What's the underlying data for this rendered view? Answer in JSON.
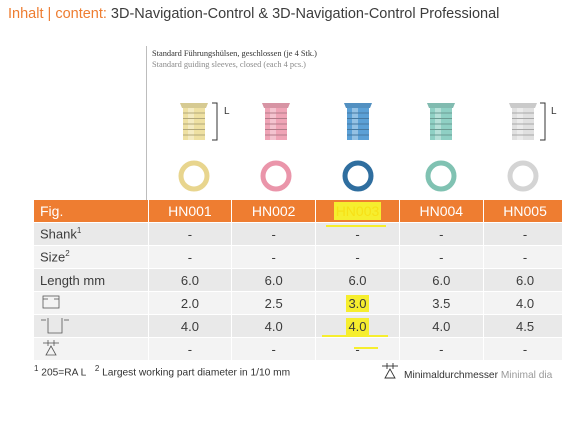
{
  "header": {
    "inhalt": "Inhalt",
    "sep": " | ",
    "content": "content:",
    "title": " 3D-Navigation-Control & 3D-Navigation-Control Professional"
  },
  "subtitle": {
    "de": "Standard Führungshülsen, geschlossen (je 4 Stk.)",
    "en": "Standard guiding sleeves, closed (each 4 pcs.)"
  },
  "dimension_label": "L",
  "sleeve_colors": [
    "#eee0a2",
    "#efa4b6",
    "#5ba0d6",
    "#8fd0c4",
    "#e0e0e0"
  ],
  "ring_colors": [
    "#e8d58e",
    "#ea95aa",
    "#2f6e9f",
    "#80c2b2",
    "#d4d4d4"
  ],
  "table": {
    "columns": [
      "HN001",
      "HN002",
      "HN003",
      "HN004",
      "HN005"
    ],
    "header_label": "Fig.",
    "highlighted_column": "HN003",
    "rows": [
      {
        "label": "Shank",
        "sup": "1",
        "values": [
          "-",
          "-",
          "-",
          "-",
          "-"
        ]
      },
      {
        "label": "Size",
        "sup": "2",
        "values": [
          "-",
          "-",
          "-",
          "-",
          "-"
        ]
      },
      {
        "label": "Length mm",
        "sup": "",
        "values": [
          "6.0",
          "6.0",
          "6.0",
          "6.0",
          "6.0"
        ]
      },
      {
        "label": "",
        "icon": "inner-diameter-icon",
        "values": [
          "2.0",
          "2.5",
          "3.0",
          "3.5",
          "4.0"
        ]
      },
      {
        "label": "",
        "icon": "outer-diameter-icon",
        "values": [
          "4.0",
          "4.0",
          "4.0",
          "4.0",
          "4.5"
        ]
      },
      {
        "label": "",
        "icon": "minimal-diameter-icon",
        "values": [
          "-",
          "-",
          "-",
          "-",
          "-"
        ]
      }
    ]
  },
  "footnotes": {
    "f1_sup": "1",
    "f1": " 205=RA L",
    "f2_sup": "2",
    "f2": " Largest working part diameter in 1/10 mm",
    "min_de": "Minimaldurchmesser",
    "min_en": " Minimal dia"
  }
}
